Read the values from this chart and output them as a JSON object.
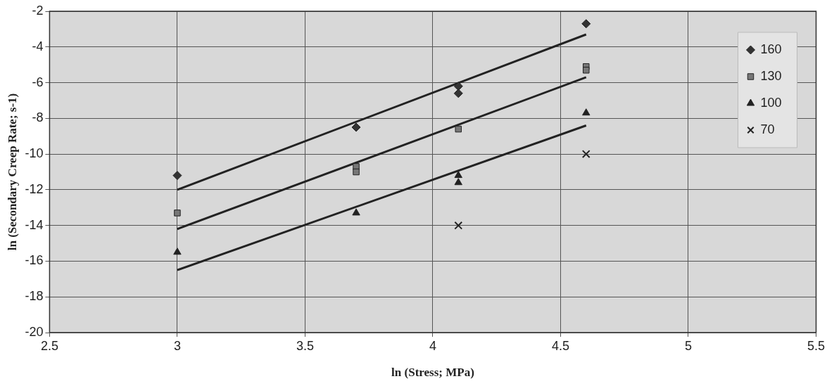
{
  "chart_data": {
    "type": "scatter",
    "xlabel": "ln (Stress; MPa)",
    "ylabel": "ln (Secondary Creep Rate; s-1)",
    "xlim": [
      2.5,
      5.5
    ],
    "xticks": [
      2.5,
      3,
      3.5,
      4,
      4.5,
      5,
      5.5
    ],
    "ylim": [
      -20,
      -2
    ],
    "yticks": [
      -20,
      -18,
      -16,
      -14,
      -12,
      -10,
      -8,
      -6,
      -4,
      -2
    ],
    "grid": true,
    "legend": "top right",
    "series": [
      {
        "name": "160",
        "color": "#333333",
        "marker": "diamond",
        "x": [
          3,
          3.7,
          4.1,
          4.1,
          4.6
        ],
        "values": [
          -11.2,
          -8.5,
          -6.2,
          -6.6,
          -2.7
        ]
      },
      {
        "name": "130",
        "color": "#777777",
        "marker": "square",
        "x": [
          3,
          3.7,
          3.7,
          4.1,
          4.6,
          4.6
        ],
        "values": [
          -13.3,
          -10.7,
          -11.0,
          -8.6,
          -5.1,
          -5.3
        ]
      },
      {
        "name": "100",
        "color": "#222222",
        "marker": "triangle",
        "x": [
          3,
          3.7,
          4.1,
          4.1,
          4.6
        ],
        "values": [
          -15.5,
          -13.3,
          -11.2,
          -11.6,
          -7.7
        ]
      },
      {
        "name": "70",
        "color": "#222222",
        "marker": "cross",
        "x": [
          4.1,
          4.6
        ],
        "values": [
          -14.0,
          -10.0
        ]
      },
      {
        "type": "line",
        "color": "#222222",
        "marker": "none",
        "x": [
          3,
          4.6
        ],
        "values": [
          -12.0,
          -3.3
        ]
      },
      {
        "type": "line",
        "color": "#222222",
        "marker": "none",
        "x": [
          3,
          4.6
        ],
        "values": [
          -14.2,
          -5.7
        ]
      },
      {
        "type": "line",
        "color": "#222222",
        "marker": "none",
        "x": [
          3,
          4.6
        ],
        "values": [
          -16.5,
          -8.4
        ]
      }
    ]
  }
}
